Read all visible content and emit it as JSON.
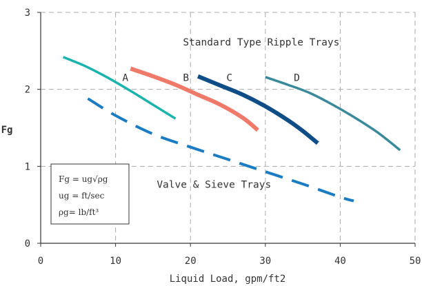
{
  "chart_data": {
    "type": "line",
    "title": "",
    "xlabel": "Liquid Load, gpm/ft2",
    "ylabel": "Fg",
    "xlim": [
      0,
      50
    ],
    "ylim": [
      0,
      3
    ],
    "xticks": [
      "0",
      "10",
      "20",
      "30",
      "40",
      "50"
    ],
    "yticks": [
      "0",
      "1",
      "2",
      "3"
    ],
    "grid": "dashed",
    "series": [
      {
        "name": "A",
        "color": "#1ab3ad",
        "dash": "solid",
        "x": [
          3,
          6,
          9,
          12,
          15,
          18
        ],
        "y": [
          2.42,
          2.3,
          2.15,
          1.98,
          1.8,
          1.62
        ]
      },
      {
        "name": "B",
        "color": "#f07a6a",
        "dash": "solid",
        "x": [
          12,
          15,
          18,
          21,
          24,
          27,
          29
        ],
        "y": [
          2.27,
          2.17,
          2.06,
          1.93,
          1.8,
          1.63,
          1.47
        ]
      },
      {
        "name": "C",
        "color": "#0e4d86",
        "dash": "solid",
        "x": [
          21,
          24,
          27,
          30,
          33,
          35,
          37
        ],
        "y": [
          2.17,
          2.05,
          1.93,
          1.78,
          1.6,
          1.46,
          1.3
        ]
      },
      {
        "name": "D",
        "color": "#3a8a9c",
        "dash": "solid",
        "x": [
          30,
          33,
          36,
          39,
          42,
          45,
          48
        ],
        "y": [
          2.16,
          2.06,
          1.95,
          1.8,
          1.63,
          1.44,
          1.21
        ]
      },
      {
        "name": "",
        "color": "#1a7cc2",
        "dash": "dashed",
        "x": [
          6.3,
          10,
          15,
          20,
          25,
          30,
          35,
          40,
          41.8
        ],
        "y": [
          1.88,
          1.66,
          1.42,
          1.25,
          1.09,
          0.93,
          0.77,
          0.6,
          0.55
        ]
      }
    ],
    "annotations": [
      {
        "text": "Standard Type Ripple Trays",
        "x": 19,
        "y": 2.57
      },
      {
        "text": "A",
        "x": 10.9,
        "y": 2.11
      },
      {
        "text": "B",
        "x": 19,
        "y": 2.11
      },
      {
        "text": "C",
        "x": 24.8,
        "y": 2.11
      },
      {
        "text": "D",
        "x": 33.8,
        "y": 2.11
      },
      {
        "text": "Valve & Sieve Trays",
        "x": 15.5,
        "y": 0.72
      }
    ],
    "legend_box": [
      "Fg = ug√ρg",
      "ug = ft/sec",
      "ρg= lb/ft³"
    ]
  }
}
